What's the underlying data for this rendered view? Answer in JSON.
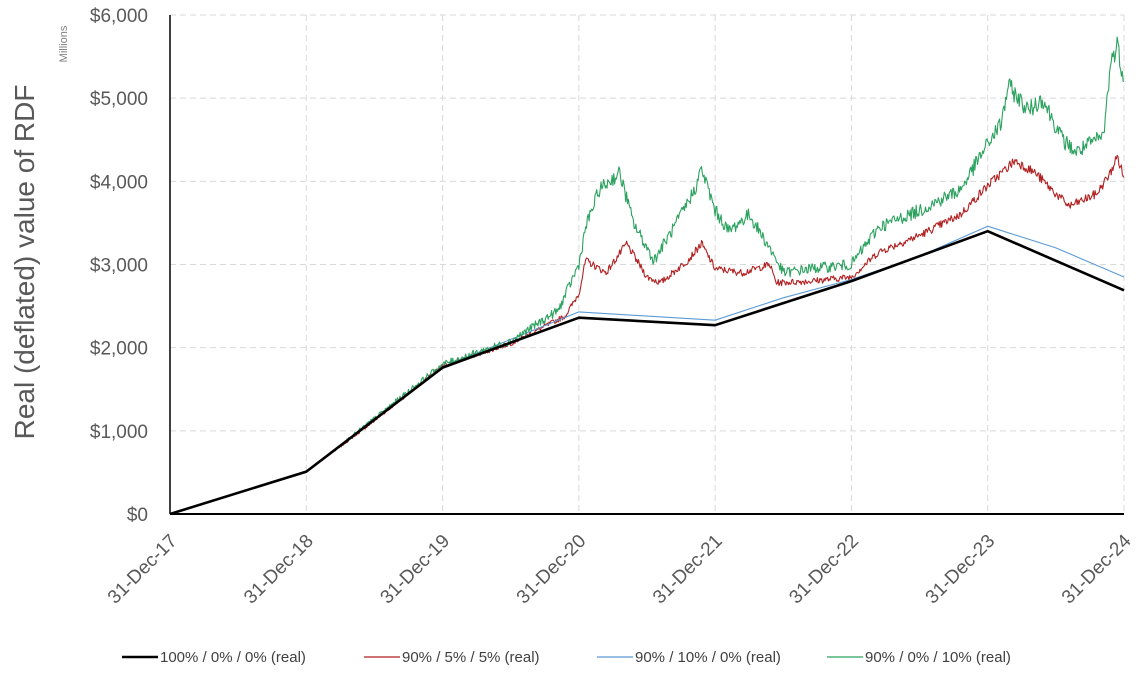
{
  "chart_data": {
    "type": "line",
    "title": "",
    "xlabel": "",
    "ylabel": "Real (deflated) value of RDF",
    "y_units": "Millions",
    "x_ticks": [
      "31-Dec-17",
      "31-Dec-18",
      "31-Dec-19",
      "31-Dec-20",
      "31-Dec-21",
      "31-Dec-22",
      "31-Dec-23",
      "31-Dec-24"
    ],
    "y_ticks": [
      "$0",
      "$1,000",
      "$2,000",
      "$3,000",
      "$4,000",
      "$5,000",
      "$6,000"
    ],
    "ylim": [
      0,
      6000
    ],
    "xlim": [
      0,
      7
    ],
    "x_unit": "years since 31-Dec-17",
    "grid": true,
    "legend_position": "bottom",
    "series": [
      {
        "name": "100% / 0% / 0% (real)",
        "color": "#000000",
        "width": "thick",
        "points": [
          [
            0,
            0
          ],
          [
            1,
            510
          ],
          [
            2,
            1760
          ],
          [
            3,
            2360
          ],
          [
            4,
            2270
          ],
          [
            5,
            2800
          ],
          [
            6,
            3400
          ],
          [
            7,
            2690
          ]
        ]
      },
      {
        "name": "90% / 5% / 5% (real)",
        "color": "#b22222",
        "width": "thin",
        "points": [
          [
            0,
            0
          ],
          [
            1,
            500
          ],
          [
            1.5,
            1120
          ],
          [
            2,
            1780
          ],
          [
            2.5,
            2050
          ],
          [
            2.9,
            2380
          ],
          [
            3.0,
            2650
          ],
          [
            3.05,
            3050
          ],
          [
            3.2,
            2900
          ],
          [
            3.35,
            3250
          ],
          [
            3.5,
            2850
          ],
          [
            3.6,
            2780
          ],
          [
            3.8,
            3050
          ],
          [
            3.9,
            3250
          ],
          [
            4.0,
            2950
          ],
          [
            4.2,
            2900
          ],
          [
            4.4,
            3000
          ],
          [
            4.45,
            2780
          ],
          [
            4.7,
            2800
          ],
          [
            5.0,
            2850
          ],
          [
            5.2,
            3150
          ],
          [
            5.5,
            3350
          ],
          [
            5.8,
            3600
          ],
          [
            6.0,
            3950
          ],
          [
            6.1,
            4100
          ],
          [
            6.2,
            4250
          ],
          [
            6.35,
            4100
          ],
          [
            6.5,
            3850
          ],
          [
            6.6,
            3700
          ],
          [
            6.8,
            3850
          ],
          [
            6.9,
            4100
          ],
          [
            6.95,
            4300
          ],
          [
            7.0,
            4050
          ]
        ]
      },
      {
        "name": "90% / 10% / 0% (real)",
        "color": "#5b9bd5",
        "width": "thin",
        "points": [
          [
            0,
            0
          ],
          [
            1,
            500
          ],
          [
            2,
            1770
          ],
          [
            2.5,
            2100
          ],
          [
            3,
            2430
          ],
          [
            3.5,
            2380
          ],
          [
            4,
            2330
          ],
          [
            4.5,
            2600
          ],
          [
            5,
            2820
          ],
          [
            5.5,
            3100
          ],
          [
            6,
            3460
          ],
          [
            6.5,
            3200
          ],
          [
            7,
            2850
          ]
        ]
      },
      {
        "name": "90% / 0% / 10% (real)",
        "color": "#2ca25f",
        "width": "thin",
        "points": [
          [
            0,
            0
          ],
          [
            1,
            500
          ],
          [
            1.5,
            1150
          ],
          [
            2,
            1800
          ],
          [
            2.5,
            2080
          ],
          [
            2.85,
            2450
          ],
          [
            3.0,
            3000
          ],
          [
            3.05,
            3450
          ],
          [
            3.15,
            3900
          ],
          [
            3.3,
            4100
          ],
          [
            3.4,
            3500
          ],
          [
            3.55,
            3050
          ],
          [
            3.7,
            3450
          ],
          [
            3.85,
            3900
          ],
          [
            3.9,
            4150
          ],
          [
            4.0,
            3650
          ],
          [
            4.1,
            3400
          ],
          [
            4.25,
            3600
          ],
          [
            4.4,
            3200
          ],
          [
            4.5,
            2900
          ],
          [
            4.7,
            2950
          ],
          [
            5.0,
            3000
          ],
          [
            5.2,
            3450
          ],
          [
            5.5,
            3650
          ],
          [
            5.8,
            3900
          ],
          [
            6.0,
            4450
          ],
          [
            6.1,
            4700
          ],
          [
            6.15,
            5150
          ],
          [
            6.3,
            4850
          ],
          [
            6.4,
            5000
          ],
          [
            6.55,
            4500
          ],
          [
            6.65,
            4350
          ],
          [
            6.85,
            4550
          ],
          [
            6.9,
            5400
          ],
          [
            6.95,
            5650
          ],
          [
            7.0,
            5200
          ]
        ]
      }
    ]
  }
}
